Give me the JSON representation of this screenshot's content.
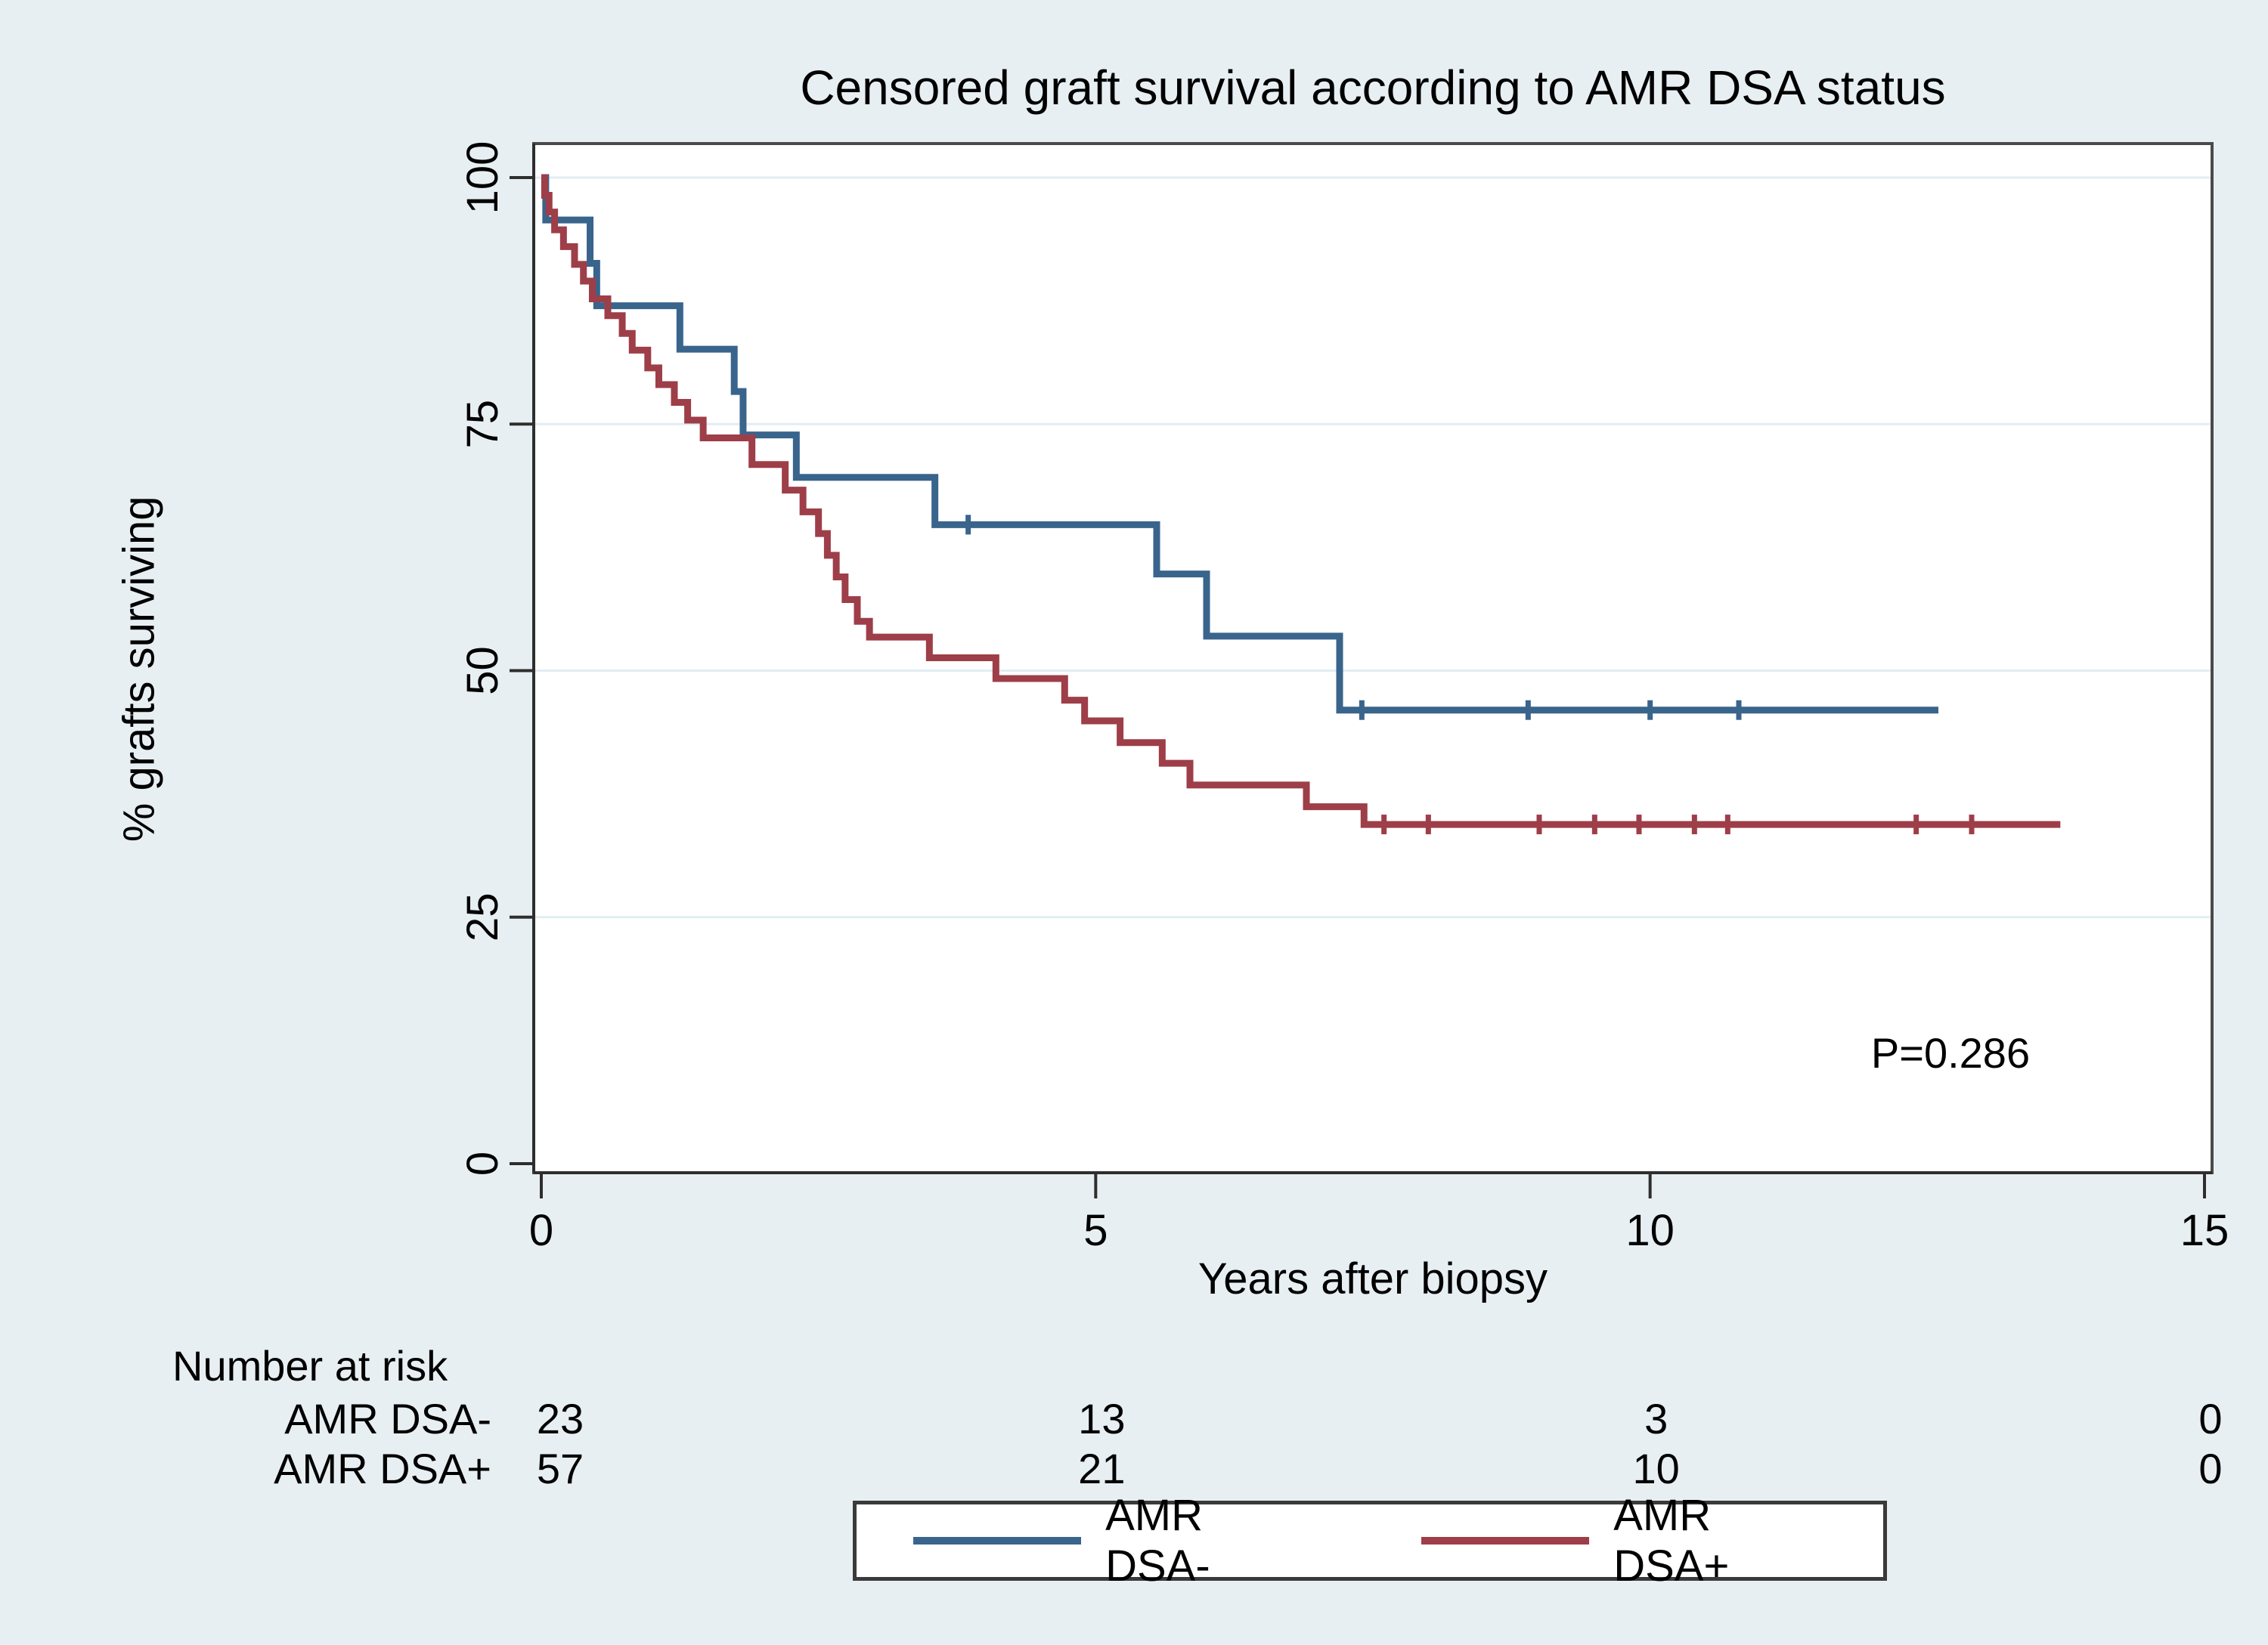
{
  "title": "Censored graft survival according to AMR DSA status",
  "axes": {
    "x_label": "Years after biopsy",
    "y_label": "% grafts surviving",
    "x_ticks": [
      0,
      5,
      10,
      15
    ],
    "y_ticks": [
      0,
      25,
      50,
      75,
      100
    ],
    "x_range": [
      0,
      15
    ],
    "y_range": [
      0,
      100
    ],
    "grid": "horizontal-only"
  },
  "annotation": {
    "p_value": "P=0.286"
  },
  "risk_table": {
    "heading": "Number at risk",
    "columns_t": [
      0,
      5,
      10,
      15
    ],
    "rows": [
      {
        "label": "AMR DSA-",
        "counts": [
          "23",
          "13",
          "3",
          "0"
        ]
      },
      {
        "label": "AMR DSA+",
        "counts": [
          "57",
          "21",
          "10",
          "0"
        ]
      }
    ]
  },
  "legend": {
    "position": "bottom-center",
    "items": [
      {
        "label": "AMR DSA-",
        "color": "#39648c"
      },
      {
        "label": "AMR DSA+",
        "color": "#9e3e48"
      }
    ]
  },
  "colors": {
    "background": "#e8eff2",
    "plot_background": "#ffffff",
    "grid": "#e2edf4",
    "axis": "#2e2e2e",
    "border": "#4a4a4a",
    "series_blue": "#39648c",
    "series_red": "#9e3e48",
    "text": "#000000"
  },
  "chart_data": {
    "type": "line",
    "subtype": "kaplan-meier-step",
    "title": "Censored graft survival according to AMR DSA status",
    "xlabel": "Years after biopsy",
    "ylabel": "% grafts surviving",
    "xlim": [
      0,
      15
    ],
    "ylim": [
      0,
      100
    ],
    "legend_position": "bottom",
    "series": [
      {
        "name": "AMR DSA-",
        "color": "#39648c",
        "n_at_start": 23,
        "start": [
          0,
          100
        ],
        "drops": [
          [
            0.04,
            95.7
          ],
          [
            0.44,
            91.3
          ],
          [
            0.5,
            87.0
          ],
          [
            1.25,
            82.6
          ],
          [
            1.74,
            78.3
          ],
          [
            1.82,
            73.9
          ],
          [
            2.3,
            69.6
          ],
          [
            3.55,
            64.8
          ],
          [
            5.55,
            59.8
          ],
          [
            6.0,
            53.5
          ],
          [
            7.2,
            46.0
          ]
        ],
        "end_t": 12.6,
        "censor_marks_t": [
          3.85,
          7.4,
          8.9,
          10.0,
          10.8
        ]
      },
      {
        "name": "AMR DSA+",
        "color": "#9e3e48",
        "n_at_start": 57,
        "start": [
          0,
          100
        ],
        "drops": [
          [
            0.03,
            98.2
          ],
          [
            0.07,
            96.5
          ],
          [
            0.12,
            94.7
          ],
          [
            0.2,
            93.0
          ],
          [
            0.3,
            91.2
          ],
          [
            0.38,
            89.5
          ],
          [
            0.46,
            87.7
          ],
          [
            0.6,
            86.0
          ],
          [
            0.73,
            84.2
          ],
          [
            0.82,
            82.5
          ],
          [
            0.96,
            80.7
          ],
          [
            1.06,
            79.0
          ],
          [
            1.2,
            77.2
          ],
          [
            1.32,
            75.4
          ],
          [
            1.46,
            73.6
          ],
          [
            1.9,
            70.9
          ],
          [
            2.2,
            68.3
          ],
          [
            2.36,
            66.1
          ],
          [
            2.5,
            63.9
          ],
          [
            2.58,
            61.7
          ],
          [
            2.66,
            59.5
          ],
          [
            2.74,
            57.2
          ],
          [
            2.85,
            55.0
          ],
          [
            2.96,
            53.4
          ],
          [
            3.5,
            51.3
          ],
          [
            4.1,
            49.2
          ],
          [
            4.72,
            47.0
          ],
          [
            4.9,
            44.9
          ],
          [
            5.22,
            42.7
          ],
          [
            5.6,
            40.6
          ],
          [
            5.85,
            38.4
          ],
          [
            6.9,
            36.2
          ],
          [
            7.42,
            34.4
          ]
        ],
        "end_t": 13.7,
        "censor_marks_t": [
          7.6,
          8.0,
          9.0,
          9.5,
          9.9,
          10.4,
          10.7,
          12.4,
          12.9
        ]
      }
    ]
  }
}
